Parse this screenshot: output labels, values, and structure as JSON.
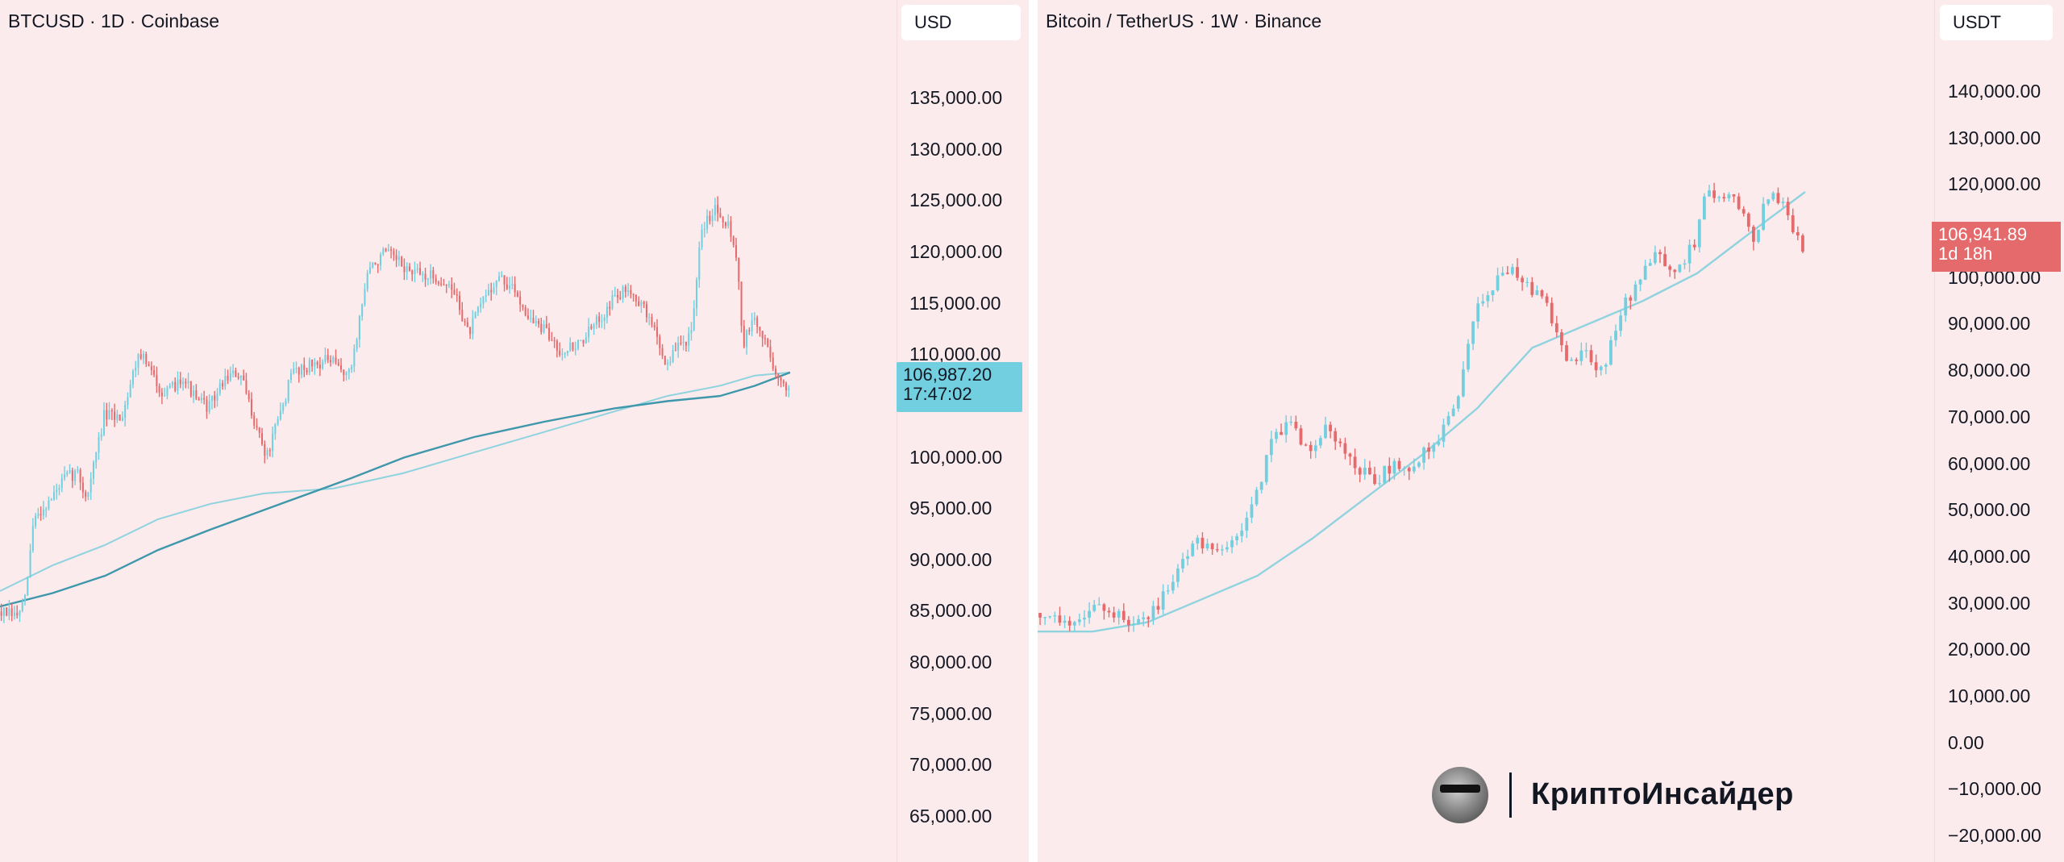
{
  "colors": {
    "background": "#fcebec",
    "up": "#72cfdf",
    "down": "#e46a6c",
    "ma_long": "#3f97ab",
    "ma_short": "#8fd3df",
    "text": "#131722"
  },
  "chart_data": [
    {
      "type": "candlestick",
      "title": "BTCUSD · 1D · Coinbase",
      "currency": "USD",
      "ylim": [
        62000,
        140000
      ],
      "price_axis_ticks": [
        "135,000.00",
        "130,000.00",
        "125,000.00",
        "120,000.00",
        "115,000.00",
        "110,000.00",
        "100,000.00",
        "95,000.00",
        "90,000.00",
        "85,000.00",
        "80,000.00",
        "75,000.00",
        "70,000.00",
        "65,000.00"
      ],
      "price_axis_tick_values": [
        135000,
        130000,
        125000,
        120000,
        115000,
        110000,
        100000,
        95000,
        90000,
        85000,
        80000,
        75000,
        70000,
        65000
      ],
      "last_price": {
        "value": 106987.2,
        "label": "106,987.20",
        "countdown": "17:47:02",
        "direction": "up"
      },
      "close_path": [
        [
          0,
          85000
        ],
        [
          20,
          84500
        ],
        [
          30,
          86000
        ],
        [
          40,
          94000
        ],
        [
          60,
          96000
        ],
        [
          75,
          98000
        ],
        [
          90,
          98500
        ],
        [
          100,
          96000
        ],
        [
          120,
          104000
        ],
        [
          140,
          104000
        ],
        [
          160,
          110500
        ],
        [
          175,
          108000
        ],
        [
          190,
          106000
        ],
        [
          210,
          108000
        ],
        [
          225,
          105500
        ],
        [
          240,
          105000
        ],
        [
          260,
          108000
        ],
        [
          275,
          108000
        ],
        [
          290,
          104000
        ],
        [
          305,
          100000
        ],
        [
          320,
          104000
        ],
        [
          335,
          108500
        ],
        [
          355,
          109000
        ],
        [
          375,
          109500
        ],
        [
          400,
          108000
        ],
        [
          420,
          118000
        ],
        [
          440,
          120000
        ],
        [
          470,
          118000
        ],
        [
          500,
          117500
        ],
        [
          520,
          116000
        ],
        [
          535,
          112000
        ],
        [
          555,
          116000
        ],
        [
          570,
          117500
        ],
        [
          590,
          116000
        ],
        [
          605,
          113500
        ],
        [
          620,
          112500
        ],
        [
          640,
          110500
        ],
        [
          660,
          111000
        ],
        [
          680,
          113000
        ],
        [
          700,
          115500
        ],
        [
          720,
          116500
        ],
        [
          745,
          113000
        ],
        [
          760,
          109000
        ],
        [
          775,
          111000
        ],
        [
          790,
          112000
        ],
        [
          800,
          122000
        ],
        [
          815,
          124500
        ],
        [
          830,
          123000
        ],
        [
          840,
          120000
        ],
        [
          848,
          111000
        ],
        [
          860,
          113500
        ],
        [
          875,
          111000
        ],
        [
          890,
          107000
        ],
        [
          900,
          107000
        ]
      ],
      "series": [
        {
          "values": [
            [
              0,
              87000
            ],
            [
              60,
              89500
            ],
            [
              120,
              91500
            ],
            [
              180,
              94000
            ],
            [
              240,
              95500
            ],
            [
              300,
              96500
            ],
            [
              380,
              97000
            ],
            [
              460,
              98500
            ],
            [
              540,
              100500
            ],
            [
              620,
              102500
            ],
            [
              700,
              104500
            ],
            [
              760,
              106000
            ],
            [
              820,
              107000
            ],
            [
              860,
              108000
            ],
            [
              900,
              108300
            ]
          ]
        },
        {
          "values": [
            [
              0,
              85500
            ],
            [
              60,
              86800
            ],
            [
              120,
              88500
            ],
            [
              180,
              91000
            ],
            [
              240,
              93000
            ],
            [
              320,
              95500
            ],
            [
              400,
              98000
            ],
            [
              460,
              100000
            ],
            [
              540,
              102000
            ],
            [
              620,
              103500
            ],
            [
              700,
              104800
            ],
            [
              760,
              105500
            ],
            [
              820,
              106000
            ],
            [
              860,
              107000
            ],
            [
              900,
              108300
            ]
          ]
        }
      ]
    },
    {
      "type": "candlestick",
      "title": "Bitcoin / TetherUS · 1W · Binance",
      "currency": "USDT",
      "ylim": [
        -22000,
        150000
      ],
      "price_axis_ticks": [
        "140,000.00",
        "130,000.00",
        "120,000.00",
        "110,000.00",
        "100,000.00",
        "90,000.00",
        "80,000.00",
        "70,000.00",
        "60,000.00",
        "50,000.00",
        "40,000.00",
        "30,000.00",
        "20,000.00",
        "10,000.00",
        "0.00",
        "−10,000.00",
        "−20,000.00"
      ],
      "price_axis_tick_values": [
        140000,
        130000,
        120000,
        110000,
        100000,
        90000,
        80000,
        70000,
        60000,
        50000,
        40000,
        30000,
        20000,
        10000,
        0,
        -10000,
        -20000
      ],
      "last_price": {
        "value": 106941.89,
        "label": "106,941.89",
        "countdown": "1d 18h",
        "direction": "down"
      },
      "close_path": [
        [
          0,
          28000
        ],
        [
          20,
          27000
        ],
        [
          40,
          26500
        ],
        [
          60,
          28500
        ],
        [
          80,
          29000
        ],
        [
          95,
          26500
        ],
        [
          110,
          26500
        ],
        [
          130,
          28500
        ],
        [
          150,
          36000
        ],
        [
          170,
          42000
        ],
        [
          185,
          43500
        ],
        [
          200,
          42000
        ],
        [
          220,
          44000
        ],
        [
          240,
          52000
        ],
        [
          260,
          67000
        ],
        [
          280,
          68000
        ],
        [
          300,
          63000
        ],
        [
          320,
          68000
        ],
        [
          335,
          64000
        ],
        [
          350,
          60000
        ],
        [
          370,
          56000
        ],
        [
          390,
          60000
        ],
        [
          405,
          58000
        ],
        [
          425,
          63000
        ],
        [
          440,
          65000
        ],
        [
          460,
          72000
        ],
        [
          480,
          94000
        ],
        [
          500,
          98000
        ],
        [
          520,
          103000
        ],
        [
          540,
          97000
        ],
        [
          555,
          97000
        ],
        [
          565,
          90000
        ],
        [
          580,
          82000
        ],
        [
          600,
          84000
        ],
        [
          620,
          80000
        ],
        [
          640,
          93000
        ],
        [
          660,
          100000
        ],
        [
          680,
          105000
        ],
        [
          690,
          100000
        ],
        [
          705,
          102000
        ],
        [
          720,
          108000
        ],
        [
          730,
          118000
        ],
        [
          750,
          118500
        ],
        [
          770,
          115000
        ],
        [
          785,
          108000
        ],
        [
          800,
          118000
        ],
        [
          815,
          117000
        ],
        [
          825,
          110000
        ],
        [
          838,
          107000
        ]
      ],
      "series": [
        {
          "values": [
            [
              0,
              24000
            ],
            [
              60,
              24000
            ],
            [
              120,
              26000
            ],
            [
              180,
              31000
            ],
            [
              240,
              36000
            ],
            [
              300,
              44000
            ],
            [
              360,
              53000
            ],
            [
              420,
              62000
            ],
            [
              480,
              72000
            ],
            [
              540,
              85000
            ],
            [
              600,
              90000
            ],
            [
              660,
              95000
            ],
            [
              720,
              101000
            ],
            [
              780,
              110000
            ],
            [
              838,
              118500
            ]
          ]
        }
      ]
    }
  ],
  "watermark": {
    "text": "КриптоИнсайдер"
  }
}
